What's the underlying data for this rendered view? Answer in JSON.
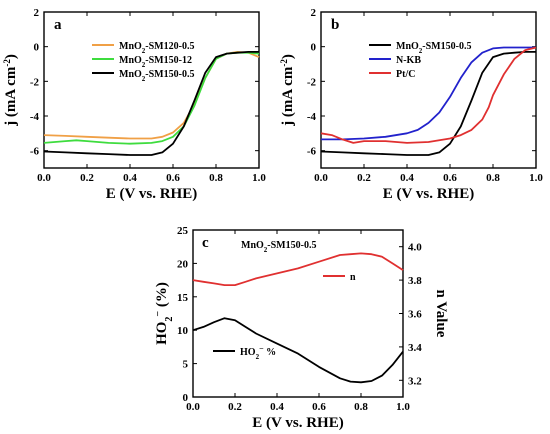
{
  "chart_data": [
    {
      "panel": "a",
      "type": "line",
      "xlabel": "E (V vs. RHE)",
      "ylabel": "j (mA cm",
      "ylabel_sup": "-2",
      "ylabel_end": ")",
      "xlim": [
        0,
        1.0
      ],
      "ylim": [
        -7,
        2
      ],
      "xticks": [
        "0.0",
        "0.2",
        "0.4",
        "0.6",
        "0.8",
        "1.0"
      ],
      "yticks": [
        "-6",
        "-4",
        "-2",
        "0",
        "2"
      ],
      "series": [
        {
          "name": "MnO2-SM120-0.5",
          "label_main": "MnO",
          "label_sub": "2",
          "label_rest": "-SM120-0.5",
          "color": "#f0a046",
          "x": [
            0.0,
            0.1,
            0.2,
            0.3,
            0.4,
            0.5,
            0.55,
            0.6,
            0.65,
            0.7,
            0.75,
            0.8,
            0.85,
            0.9,
            0.95,
            1.0
          ],
          "y": [
            -5.1,
            -5.15,
            -5.2,
            -5.25,
            -5.3,
            -5.3,
            -5.2,
            -4.95,
            -4.4,
            -3.3,
            -1.8,
            -0.7,
            -0.4,
            -0.3,
            -0.35,
            -0.6
          ]
        },
        {
          "name": "MnO2-SM150-12",
          "label_main": "MnO",
          "label_sub": "2",
          "label_rest": "-SM150-12",
          "color": "#3edc3e",
          "x": [
            0.0,
            0.05,
            0.1,
            0.15,
            0.2,
            0.3,
            0.4,
            0.5,
            0.55,
            0.6,
            0.65,
            0.7,
            0.75,
            0.8,
            0.85,
            0.9,
            0.95,
            1.0
          ],
          "y": [
            -5.55,
            -5.5,
            -5.45,
            -5.4,
            -5.45,
            -5.55,
            -5.6,
            -5.55,
            -5.45,
            -5.2,
            -4.6,
            -3.4,
            -1.8,
            -0.7,
            -0.4,
            -0.35,
            -0.35,
            -0.4
          ]
        },
        {
          "name": "MnO2-SM150-0.5",
          "label_main": "MnO",
          "label_sub": "2",
          "label_rest": "-SM150-0.5",
          "color": "#000000",
          "x": [
            0.0,
            0.1,
            0.2,
            0.3,
            0.4,
            0.5,
            0.55,
            0.6,
            0.65,
            0.7,
            0.75,
            0.8,
            0.85,
            0.9,
            0.95,
            1.0
          ],
          "y": [
            -6.05,
            -6.1,
            -6.15,
            -6.2,
            -6.25,
            -6.25,
            -6.1,
            -5.6,
            -4.6,
            -3.1,
            -1.5,
            -0.6,
            -0.4,
            -0.35,
            -0.3,
            -0.3
          ]
        }
      ]
    },
    {
      "panel": "b",
      "type": "line",
      "xlabel": "E (V vs. RHE)",
      "ylabel": "j (mA cm",
      "ylabel_sup": "-2",
      "ylabel_end": ")",
      "xlim": [
        0,
        1.0
      ],
      "ylim": [
        -7,
        2
      ],
      "xticks": [
        "0.0",
        "0.2",
        "0.4",
        "0.6",
        "0.8",
        "1.0"
      ],
      "yticks": [
        "-6",
        "-4",
        "-2",
        "0",
        "2"
      ],
      "series": [
        {
          "name": "MnO2-SM150-0.5",
          "label_main": "MnO",
          "label_sub": "2",
          "label_rest": "-SM150-0.5",
          "color": "#000000",
          "x": [
            0.0,
            0.1,
            0.2,
            0.3,
            0.4,
            0.5,
            0.55,
            0.6,
            0.65,
            0.7,
            0.75,
            0.8,
            0.85,
            0.9,
            0.95,
            1.0
          ],
          "y": [
            -6.05,
            -6.1,
            -6.15,
            -6.2,
            -6.25,
            -6.25,
            -6.1,
            -5.6,
            -4.6,
            -3.1,
            -1.5,
            -0.6,
            -0.4,
            -0.35,
            -0.3,
            -0.3
          ]
        },
        {
          "name": "N-KB",
          "label_main": "N-KB",
          "label_sub": "",
          "label_rest": "",
          "color": "#2222cc",
          "x": [
            0.0,
            0.1,
            0.2,
            0.3,
            0.4,
            0.45,
            0.5,
            0.55,
            0.6,
            0.65,
            0.7,
            0.75,
            0.8,
            0.85,
            0.9,
            0.95,
            1.0
          ],
          "y": [
            -5.35,
            -5.35,
            -5.3,
            -5.2,
            -5.0,
            -4.8,
            -4.4,
            -3.8,
            -2.9,
            -1.8,
            -0.9,
            -0.35,
            -0.1,
            -0.05,
            -0.05,
            -0.05,
            -0.05
          ]
        },
        {
          "name": "Pt/C",
          "label_main": "Pt/C",
          "label_sub": "",
          "label_rest": "",
          "color": "#e03030",
          "x": [
            0.0,
            0.05,
            0.1,
            0.15,
            0.2,
            0.3,
            0.4,
            0.5,
            0.6,
            0.65,
            0.7,
            0.75,
            0.78,
            0.8,
            0.85,
            0.9,
            0.95,
            1.0
          ],
          "y": [
            -5.0,
            -5.1,
            -5.35,
            -5.55,
            -5.45,
            -5.45,
            -5.55,
            -5.5,
            -5.3,
            -5.1,
            -4.8,
            -4.2,
            -3.5,
            -2.8,
            -1.6,
            -0.7,
            -0.2,
            -0.05
          ]
        }
      ]
    },
    {
      "panel": "c",
      "type": "line",
      "annotation_main": "MnO",
      "annotation_sub": "2",
      "annotation_rest": "-SM150-0.5",
      "xlabel": "E (V vs. RHE)",
      "ylabel_left_main": "HO",
      "ylabel_left_sub": "2",
      "ylabel_left_sup": "−",
      "ylabel_left_rest": " (%)",
      "ylabel_right": "n  Value",
      "xlim": [
        0,
        1.0
      ],
      "ylim_left": [
        0,
        25
      ],
      "ylim_right": [
        3.1,
        4.1
      ],
      "xticks": [
        "0.0",
        "0.2",
        "0.4",
        "0.6",
        "0.8",
        "1.0"
      ],
      "yticks_left": [
        "0",
        "5",
        "10",
        "15",
        "20",
        "25"
      ],
      "yticks_right": [
        "3.2",
        "3.4",
        "3.6",
        "3.8",
        "4.0"
      ],
      "series": [
        {
          "name": "n",
          "axis": "right",
          "color": "#e03030",
          "legend_main": "n",
          "legend_sub": "",
          "legend_sup": "",
          "legend_rest": "",
          "x": [
            0.0,
            0.05,
            0.1,
            0.15,
            0.2,
            0.25,
            0.3,
            0.4,
            0.5,
            0.6,
            0.7,
            0.75,
            0.8,
            0.85,
            0.9,
            0.95,
            1.0
          ],
          "y": [
            3.8,
            3.79,
            3.78,
            3.77,
            3.77,
            3.79,
            3.81,
            3.84,
            3.87,
            3.91,
            3.95,
            3.955,
            3.96,
            3.955,
            3.94,
            3.9,
            3.86
          ]
        },
        {
          "name": "HO2- %",
          "axis": "left",
          "color": "#000000",
          "legend_main": "HO",
          "legend_sub": "2",
          "legend_sup": "−",
          "legend_rest": " %",
          "x": [
            0.0,
            0.05,
            0.1,
            0.15,
            0.2,
            0.25,
            0.3,
            0.4,
            0.5,
            0.6,
            0.7,
            0.75,
            0.8,
            0.85,
            0.9,
            0.95,
            1.0
          ],
          "y": [
            10.0,
            10.5,
            11.2,
            11.8,
            11.5,
            10.5,
            9.5,
            8.0,
            6.5,
            4.5,
            2.8,
            2.3,
            2.2,
            2.4,
            3.2,
            4.8,
            6.8
          ]
        }
      ]
    }
  ]
}
